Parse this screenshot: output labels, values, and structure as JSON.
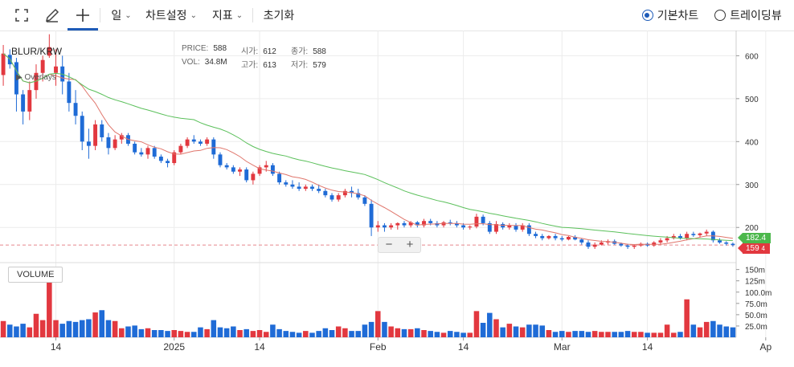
{
  "toolbar": {
    "period_label": "일",
    "settings_label": "차트설정",
    "indicator_label": "지표",
    "reset_label": "초기화",
    "chart_type_options": [
      "기본차트",
      "트레이딩뷰"
    ],
    "chart_type_selected": "기본차트",
    "icons": [
      "fullscreen-icon",
      "pen-icon",
      "crosshair-icon"
    ]
  },
  "info": {
    "symbol": "BLUR/KRW",
    "overlays_label": "Overlays",
    "price_label": "PRICE:",
    "price_value": "588",
    "vol_label": "VOL:",
    "vol_value": "34.8M",
    "open_label": "시가:",
    "open_value": "612",
    "high_label": "고가:",
    "high_value": "613",
    "close_label": "종가:",
    "close_value": "588",
    "low_label": "저가:",
    "low_value": "579"
  },
  "volume_panel_label": "VOLUME",
  "zoom": {
    "minus": "−",
    "plus": "+"
  },
  "price_tags": {
    "ma_long": "182.4",
    "last": "159",
    "last_suffix": "4"
  },
  "colors": {
    "up": "#e2383f",
    "down": "#1f6bd6",
    "ma_short": "#e0766c",
    "ma_long": "#5bc05b"
  },
  "chart_data": {
    "type": "candlestick",
    "x_tick_labels": [
      {
        "label": "14",
        "index": 8
      },
      {
        "label": "2025",
        "index": 26
      },
      {
        "label": "14",
        "index": 39
      },
      {
        "label": "Feb",
        "index": 57
      },
      {
        "label": "14",
        "index": 70
      },
      {
        "label": "Mar",
        "index": 85
      },
      {
        "label": "14",
        "index": 98
      },
      {
        "label": "Ap",
        "index": 116
      }
    ],
    "price_axis": {
      "ticks": [
        200,
        300,
        400,
        500,
        600
      ],
      "range": [
        120,
        640
      ]
    },
    "volume_axis": {
      "ticks": [
        "25.0m",
        "50.0m",
        "75.0m",
        "100.0m",
        "125m",
        "150m"
      ],
      "tick_values": [
        25,
        50,
        75,
        100,
        125,
        150
      ],
      "range": [
        0,
        160
      ]
    },
    "current_price_line": 159,
    "candles": [
      [
        555,
        625,
        530,
        605,
        36
      ],
      [
        602,
        615,
        570,
        580,
        28
      ],
      [
        585,
        595,
        470,
        510,
        24
      ],
      [
        510,
        520,
        440,
        470,
        30
      ],
      [
        470,
        540,
        450,
        520,
        22
      ],
      [
        520,
        580,
        500,
        560,
        52
      ],
      [
        560,
        600,
        540,
        590,
        38
      ],
      [
        600,
        650,
        595,
        620,
        148
      ],
      [
        560,
        615,
        530,
        575,
        38
      ],
      [
        575,
        600,
        510,
        540,
        30
      ],
      [
        540,
        560,
        470,
        490,
        36
      ],
      [
        490,
        520,
        440,
        460,
        34
      ],
      [
        460,
        470,
        380,
        400,
        38
      ],
      [
        400,
        430,
        360,
        390,
        40
      ],
      [
        390,
        450,
        380,
        440,
        55
      ],
      [
        440,
        450,
        400,
        410,
        60
      ],
      [
        410,
        420,
        370,
        385,
        38
      ],
      [
        385,
        415,
        380,
        405,
        36
      ],
      [
        405,
        420,
        395,
        415,
        20
      ],
      [
        415,
        420,
        390,
        395,
        24
      ],
      [
        395,
        400,
        370,
        375,
        26
      ],
      [
        375,
        385,
        365,
        370,
        18
      ],
      [
        370,
        390,
        360,
        385,
        20
      ],
      [
        385,
        390,
        360,
        365,
        16
      ],
      [
        365,
        370,
        350,
        355,
        16
      ],
      [
        355,
        360,
        340,
        350,
        14
      ],
      [
        350,
        380,
        345,
        375,
        16
      ],
      [
        375,
        395,
        370,
        390,
        14
      ],
      [
        390,
        410,
        385,
        405,
        12
      ],
      [
        405,
        415,
        395,
        400,
        12
      ],
      [
        400,
        405,
        390,
        395,
        22
      ],
      [
        395,
        410,
        390,
        405,
        18
      ],
      [
        405,
        410,
        360,
        370,
        38
      ],
      [
        370,
        375,
        340,
        345,
        22
      ],
      [
        345,
        350,
        335,
        340,
        20
      ],
      [
        340,
        345,
        325,
        330,
        24
      ],
      [
        330,
        340,
        320,
        335,
        16
      ],
      [
        335,
        340,
        305,
        310,
        18
      ],
      [
        310,
        330,
        300,
        325,
        14
      ],
      [
        325,
        345,
        320,
        340,
        16
      ],
      [
        340,
        355,
        330,
        345,
        12
      ],
      [
        345,
        350,
        320,
        325,
        28
      ],
      [
        325,
        330,
        300,
        305,
        18
      ],
      [
        305,
        310,
        295,
        300,
        14
      ],
      [
        300,
        310,
        290,
        295,
        12
      ],
      [
        295,
        305,
        285,
        290,
        10
      ],
      [
        290,
        300,
        285,
        295,
        14
      ],
      [
        295,
        300,
        285,
        290,
        10
      ],
      [
        290,
        300,
        280,
        285,
        14
      ],
      [
        285,
        290,
        270,
        275,
        20
      ],
      [
        275,
        280,
        260,
        265,
        16
      ],
      [
        265,
        280,
        260,
        275,
        24
      ],
      [
        275,
        290,
        270,
        285,
        20
      ],
      [
        285,
        295,
        270,
        280,
        14
      ],
      [
        280,
        290,
        265,
        270,
        14
      ],
      [
        270,
        275,
        250,
        255,
        28
      ],
      [
        255,
        265,
        180,
        200,
        34
      ],
      [
        200,
        215,
        190,
        205,
        58
      ],
      [
        205,
        210,
        190,
        200,
        34
      ],
      [
        200,
        210,
        195,
        205,
        24
      ],
      [
        205,
        212,
        195,
        210,
        20
      ],
      [
        210,
        215,
        200,
        205,
        18
      ],
      [
        205,
        215,
        200,
        212,
        18
      ],
      [
        212,
        215,
        200,
        205,
        20
      ],
      [
        205,
        220,
        200,
        215,
        16
      ],
      [
        215,
        220,
        205,
        210,
        14
      ],
      [
        210,
        215,
        200,
        205,
        12
      ],
      [
        205,
        215,
        200,
        212,
        10
      ],
      [
        212,
        218,
        205,
        210,
        14
      ],
      [
        210,
        215,
        200,
        205,
        12
      ],
      [
        205,
        210,
        195,
        200,
        10
      ],
      [
        200,
        205,
        195,
        202,
        10
      ],
      [
        202,
        232,
        198,
        225,
        58
      ],
      [
        225,
        230,
        205,
        210,
        32
      ],
      [
        210,
        215,
        185,
        190,
        54
      ],
      [
        190,
        215,
        185,
        208,
        40
      ],
      [
        208,
        212,
        195,
        200,
        22
      ],
      [
        200,
        210,
        195,
        205,
        30
      ],
      [
        205,
        210,
        190,
        195,
        24
      ],
      [
        195,
        210,
        190,
        205,
        22
      ],
      [
        205,
        210,
        180,
        185,
        28
      ],
      [
        185,
        190,
        175,
        180,
        28
      ],
      [
        180,
        185,
        170,
        175,
        26
      ],
      [
        175,
        182,
        172,
        180,
        16
      ],
      [
        180,
        185,
        170,
        175,
        12
      ],
      [
        175,
        180,
        168,
        172,
        14
      ],
      [
        172,
        180,
        170,
        178,
        12
      ],
      [
        178,
        182,
        170,
        172,
        14
      ],
      [
        172,
        175,
        160,
        165,
        14
      ],
      [
        165,
        170,
        150,
        155,
        12
      ],
      [
        155,
        165,
        150,
        160,
        14
      ],
      [
        160,
        170,
        158,
        165,
        12
      ],
      [
        165,
        172,
        160,
        168,
        12
      ],
      [
        168,
        172,
        160,
        162,
        12
      ],
      [
        162,
        165,
        155,
        158,
        12
      ],
      [
        158,
        162,
        150,
        155,
        14
      ],
      [
        155,
        160,
        150,
        158,
        12
      ],
      [
        158,
        165,
        155,
        162,
        12
      ],
      [
        162,
        165,
        155,
        158,
        10
      ],
      [
        158,
        168,
        155,
        165,
        10
      ],
      [
        165,
        175,
        160,
        170,
        10
      ],
      [
        170,
        180,
        165,
        175,
        28
      ],
      [
        175,
        185,
        172,
        180,
        10
      ],
      [
        180,
        185,
        172,
        175,
        12
      ],
      [
        175,
        190,
        170,
        185,
        84
      ],
      [
        185,
        190,
        178,
        182,
        28
      ],
      [
        182,
        188,
        176,
        186,
        22
      ],
      [
        186,
        195,
        180,
        190,
        34
      ],
      [
        190,
        193,
        165,
        170,
        36
      ],
      [
        170,
        175,
        162,
        165,
        28
      ],
      [
        165,
        168,
        158,
        162,
        24
      ],
      [
        162,
        165,
        155,
        159,
        22
      ]
    ]
  }
}
